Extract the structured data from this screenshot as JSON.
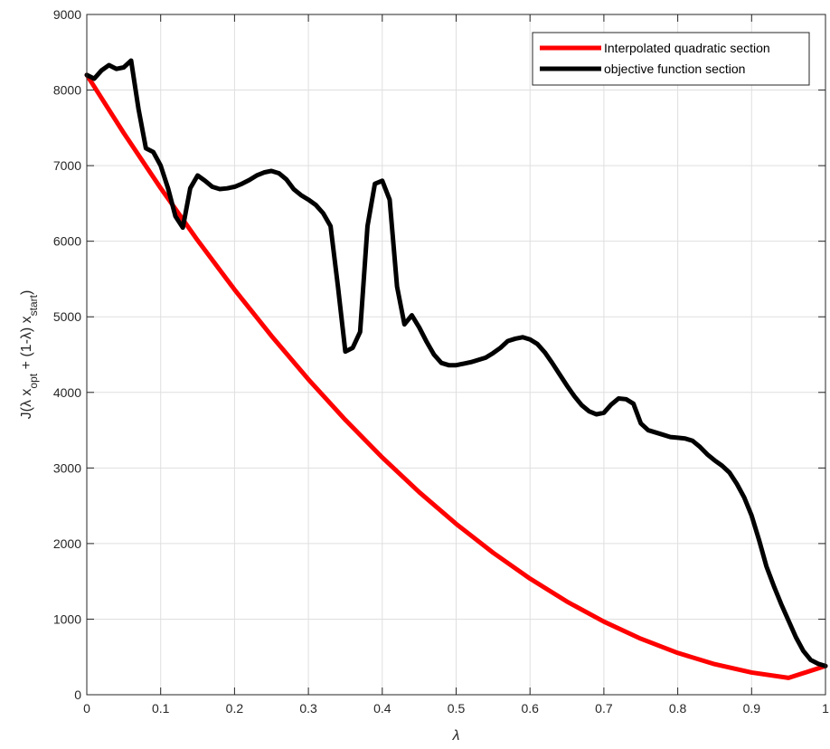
{
  "chart_data": {
    "type": "line",
    "xlabel": "λ",
    "ylabel": {
      "parts": [
        {
          "text": "J(λ x",
          "sub": false
        },
        {
          "text": "opt",
          "sub": true
        },
        {
          "text": " + (1-λ) x",
          "sub": false
        },
        {
          "text": "start",
          "sub": true
        },
        {
          "text": ")",
          "sub": false
        }
      ]
    },
    "xlim": [
      0,
      1
    ],
    "ylim": [
      0,
      9000
    ],
    "xticks": [
      0,
      0.1,
      0.2,
      0.3,
      0.4,
      0.5,
      0.6,
      0.7,
      0.8,
      0.9,
      1
    ],
    "xtick_labels": [
      "0",
      "0.1",
      "0.2",
      "0.3",
      "0.4",
      "0.5",
      "0.6",
      "0.7",
      "0.8",
      "0.9",
      "1"
    ],
    "yticks": [
      0,
      1000,
      2000,
      3000,
      4000,
      5000,
      6000,
      7000,
      8000,
      9000
    ],
    "ytick_labels": [
      "0",
      "1000",
      "2000",
      "3000",
      "4000",
      "5000",
      "6000",
      "7000",
      "8000",
      "9000"
    ],
    "grid": true,
    "legend_position": "top-right",
    "series": [
      {
        "name": "Interpolated quadratic section",
        "color": "#ff0000",
        "x": [
          0,
          0.05,
          0.1,
          0.15,
          0.2,
          0.25,
          0.3,
          0.35,
          0.4,
          0.45,
          0.5,
          0.55,
          0.6,
          0.65,
          0.7,
          0.75,
          0.8,
          0.85,
          0.9,
          0.95,
          1
        ],
        "y": [
          8200,
          7432,
          6703,
          6012,
          5360,
          4747,
          4172,
          3636,
          3139,
          2680,
          2260,
          1879,
          1536,
          1232,
          967,
          741,
          553,
          404,
          294,
          223,
          380
        ]
      },
      {
        "name": "objective function section",
        "color": "#000000",
        "x": [
          0,
          0.01,
          0.02,
          0.03,
          0.04,
          0.05,
          0.06,
          0.07,
          0.08,
          0.09,
          0.1,
          0.11,
          0.12,
          0.13,
          0.14,
          0.15,
          0.16,
          0.17,
          0.18,
          0.19,
          0.2,
          0.21,
          0.22,
          0.23,
          0.24,
          0.25,
          0.26,
          0.27,
          0.28,
          0.29,
          0.3,
          0.31,
          0.32,
          0.33,
          0.34,
          0.35,
          0.36,
          0.37,
          0.38,
          0.39,
          0.4,
          0.41,
          0.42,
          0.43,
          0.44,
          0.45,
          0.46,
          0.47,
          0.48,
          0.49,
          0.5,
          0.51,
          0.52,
          0.53,
          0.54,
          0.55,
          0.56,
          0.57,
          0.58,
          0.59,
          0.6,
          0.61,
          0.62,
          0.63,
          0.64,
          0.65,
          0.66,
          0.67,
          0.68,
          0.69,
          0.7,
          0.71,
          0.72,
          0.73,
          0.74,
          0.75,
          0.76,
          0.77,
          0.78,
          0.79,
          0.8,
          0.81,
          0.82,
          0.83,
          0.84,
          0.85,
          0.86,
          0.87,
          0.88,
          0.89,
          0.9,
          0.91,
          0.92,
          0.93,
          0.94,
          0.95,
          0.96,
          0.97,
          0.98,
          0.99,
          1
        ],
        "y": [
          8200,
          8150,
          8260,
          8330,
          8280,
          8300,
          8390,
          7750,
          7230,
          7180,
          7000,
          6700,
          6330,
          6180,
          6700,
          6870,
          6800,
          6720,
          6690,
          6700,
          6720,
          6760,
          6810,
          6870,
          6910,
          6930,
          6900,
          6820,
          6690,
          6610,
          6550,
          6480,
          6370,
          6200,
          5400,
          4540,
          4590,
          4800,
          6200,
          6760,
          6800,
          6550,
          5400,
          4900,
          5020,
          4860,
          4670,
          4500,
          4390,
          4360,
          4360,
          4380,
          4400,
          4430,
          4460,
          4520,
          4590,
          4680,
          4710,
          4730,
          4700,
          4640,
          4530,
          4390,
          4240,
          4090,
          3950,
          3830,
          3750,
          3710,
          3730,
          3840,
          3920,
          3910,
          3850,
          3590,
          3500,
          3470,
          3440,
          3410,
          3400,
          3390,
          3360,
          3280,
          3180,
          3100,
          3030,
          2940,
          2790,
          2610,
          2370,
          2050,
          1700,
          1440,
          1200,
          980,
          760,
          580,
          460,
          410,
          380
        ]
      }
    ]
  }
}
